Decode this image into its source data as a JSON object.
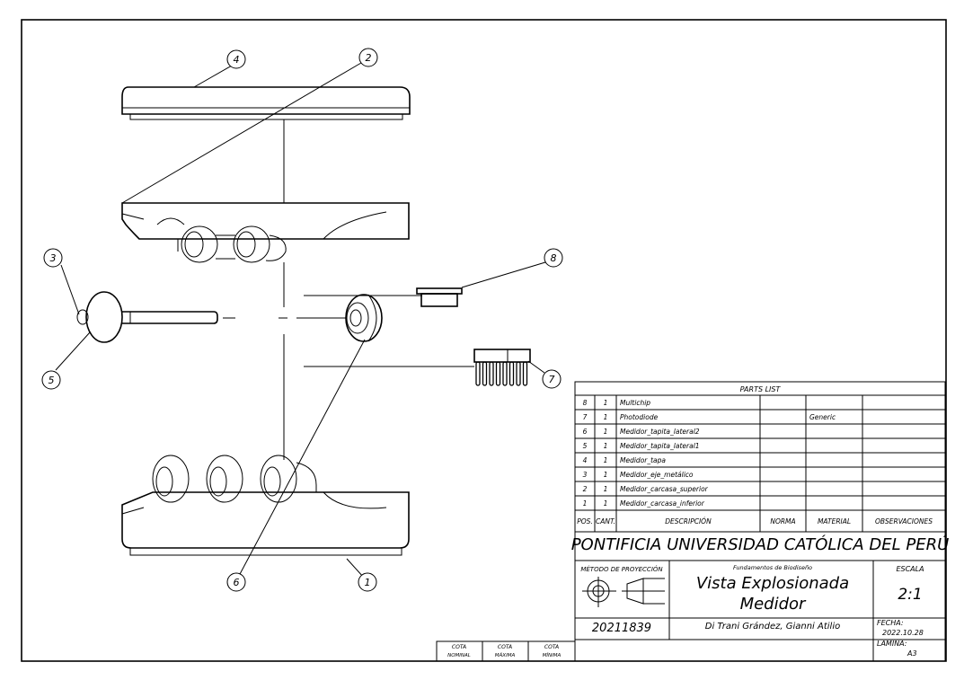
{
  "balloons": [
    "1",
    "2",
    "3",
    "4",
    "5",
    "6",
    "7",
    "8"
  ],
  "parts_list": {
    "title": "PARTS LIST",
    "headers": [
      "POS.",
      "CANT.",
      "DESCRIPCIÓN",
      "NORMA",
      "MATERIAL",
      "OBSERVACIONES"
    ],
    "rows": [
      {
        "pos": "8",
        "qty": "1",
        "desc": "Multichip",
        "norma": "",
        "material": "",
        "obs": ""
      },
      {
        "pos": "7",
        "qty": "1",
        "desc": "Photodiode",
        "norma": "",
        "material": "Generic",
        "obs": ""
      },
      {
        "pos": "6",
        "qty": "1",
        "desc": "Medidor_tapita_lateral2",
        "norma": "",
        "material": "",
        "obs": ""
      },
      {
        "pos": "5",
        "qty": "1",
        "desc": "Medidor_tapita_lateral1",
        "norma": "",
        "material": "",
        "obs": ""
      },
      {
        "pos": "4",
        "qty": "1",
        "desc": "Medidor_tapa",
        "norma": "",
        "material": "",
        "obs": ""
      },
      {
        "pos": "3",
        "qty": "1",
        "desc": "Medidor_eje_metálico",
        "norma": "",
        "material": "",
        "obs": ""
      },
      {
        "pos": "2",
        "qty": "1",
        "desc": "Medidor_carcasa_superior",
        "norma": "",
        "material": "",
        "obs": ""
      },
      {
        "pos": "1",
        "qty": "1",
        "desc": "Medidor_carcasa_inferior",
        "norma": "",
        "material": "",
        "obs": ""
      }
    ]
  },
  "title_block": {
    "university": "PONTIFICIA UNIVERSIDAD CATÓLICA DEL PERÚ",
    "projection_label": "MÉTODO DE PROYECCIÓN",
    "course": "Fundamentos de Biodiseño",
    "drawing_title_1": "Vista Explosionada",
    "drawing_title_2": "Medidor",
    "scale_label": "ESCALA",
    "scale": "2:1",
    "code": "20211839",
    "author": "Di Trani Grández, Gianni Atilio",
    "date_label": "FECHA:",
    "date": "2022.10.28",
    "sheet_label": "LÁMINA:",
    "sheet": "A3"
  },
  "tolerance_block": {
    "labels": [
      [
        "COTA",
        "NOMINAL"
      ],
      [
        "COTA",
        "MÁXIMA"
      ],
      [
        "COTA",
        "MÍNIMA"
      ]
    ]
  }
}
